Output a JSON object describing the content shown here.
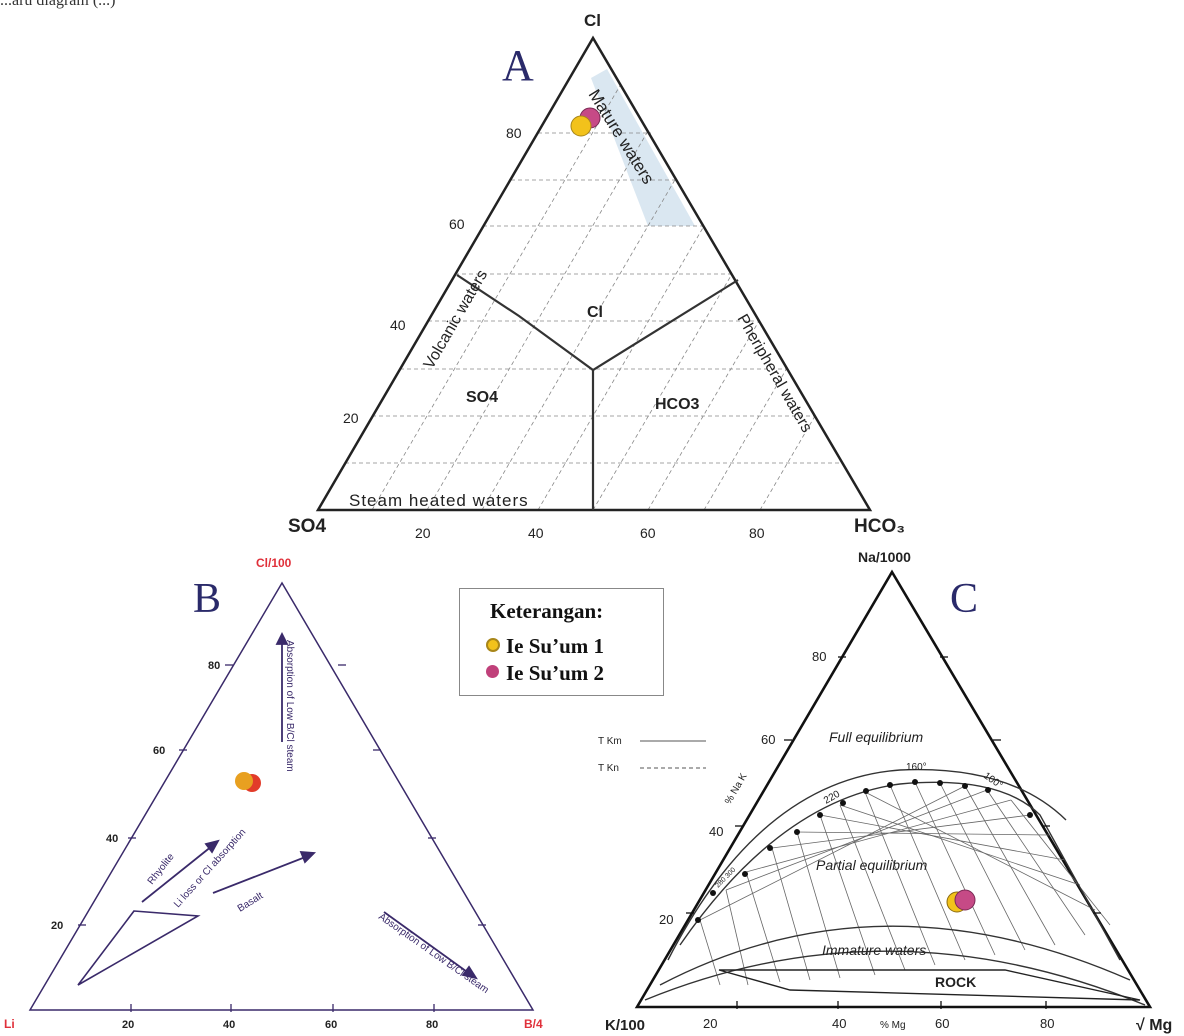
{
  "header_fragment": "...aru diagram (...)",
  "panelA": {
    "letter": "A",
    "apex_top": "Cl",
    "apex_left": "SO4",
    "apex_right": "HCO₃",
    "left_ticks": [
      "80",
      "60",
      "40",
      "20"
    ],
    "bottom_ticks": [
      "20",
      "40",
      "60",
      "80"
    ],
    "region_labels": {
      "mature": "Mature waters",
      "volcanic": "Volcanic waters",
      "peripheral": "Pheripheral waters",
      "steam": "Steam heated waters",
      "cl": "Cl",
      "so4": "SO4",
      "hco3": "HCO3"
    }
  },
  "panelB": {
    "letter": "B",
    "apex_top": "Cl/100",
    "apex_left": "Li",
    "apex_right": "B/4",
    "left_ticks": [
      "80",
      "60",
      "40",
      "20"
    ],
    "bottom_ticks": [
      "20",
      "40",
      "60",
      "80"
    ],
    "annotations": {
      "absorption_top": "Absorption of Low B/Cl steam",
      "rhyolite": "Rhyolite",
      "li_loss": "Li loss or Cl absorption",
      "basalt": "Basalt",
      "absorption_right": "Absorption of Low B/Cl steam"
    }
  },
  "panelC": {
    "letter": "C",
    "apex_top": "Na/1000",
    "apex_left": "K/100",
    "apex_right": "√ Mg",
    "left_ticks": [
      "80",
      "60",
      "40",
      "20"
    ],
    "bottom_ticks": [
      "20",
      "40",
      "60",
      "80"
    ],
    "bottom_axis_label": "% Mg",
    "side_axis_label": "% Na K",
    "tkm": "T Km",
    "tkn": "T Kn",
    "full": "Full equilibrium",
    "partial": "Partial equilibrium",
    "immature": "Immature waters",
    "rock": "ROCK",
    "temp_160": "160°",
    "temp_100": "100°",
    "temp_220": "220",
    "temp_low": "280 300"
  },
  "legend": {
    "title": "Keterangan:",
    "items": [
      {
        "label": "Ie Su’um 1",
        "color": "#f2c21b",
        "ring": "#a8861a"
      },
      {
        "label": "Ie Su’um 2",
        "color": "#c0407a",
        "ring": "#8a2a58"
      }
    ]
  },
  "samples": {
    "colors": {
      "s1": "#f2c21b",
      "s2": "#c64a86",
      "s2_B": "#e23b2a",
      "s1_B": "#e8a020"
    }
  }
}
